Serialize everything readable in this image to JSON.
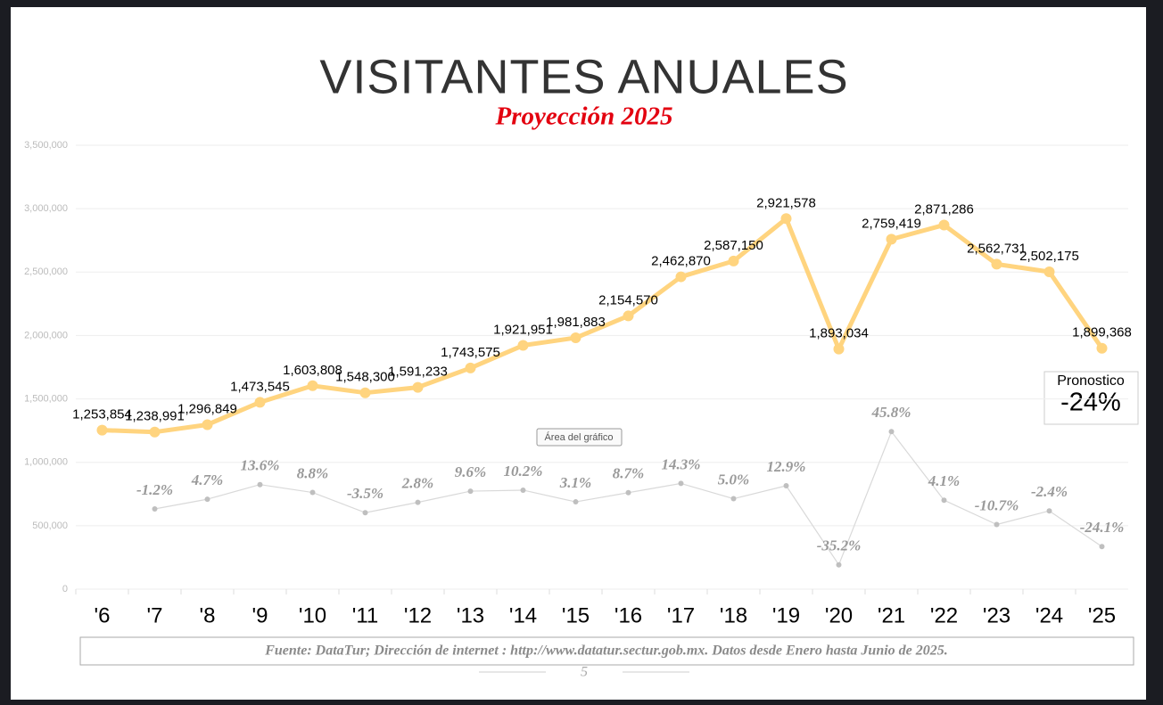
{
  "chart_data": {
    "type": "line",
    "title": "VISITANTES ANUALES",
    "subtitle": "Proyección 2025",
    "categories": [
      "'6",
      "'7",
      "'8",
      "'9",
      "'10",
      "'11",
      "'12",
      "'13",
      "'14",
      "'15",
      "'16",
      "'17",
      "'18",
      "'19",
      "'20",
      "'21",
      "'22",
      "'23",
      "'24",
      "'25"
    ],
    "series": [
      {
        "color": "#ffd47f",
        "values": [
          1253854,
          1238991,
          1296849,
          1473545,
          1603808,
          1548300,
          1591233,
          1743575,
          1921951,
          1981883,
          2154570,
          2462870,
          2587150,
          2921578,
          1893034,
          2759419,
          2871286,
          2562731,
          2502175,
          1899368
        ],
        "value_labels": [
          "1,253,854",
          "1,238,991",
          "1,296,849",
          "1,473,545",
          "1,603,808",
          "1,548,300",
          "1,591,233",
          "1,743,575",
          "1,921,951",
          "1,981,883",
          "2,154,570",
          "2,462,870",
          "2,587,150",
          "2,921,578",
          "1,893,034",
          "2,759,419",
          "2,871,286",
          "2,562,731",
          "2,502,175",
          "1,899,368"
        ]
      },
      {
        "color": "#d9d9d9",
        "axis": "y2",
        "values": [
          null,
          -1.2,
          4.7,
          13.6,
          8.8,
          -3.5,
          2.8,
          9.6,
          10.2,
          3.1,
          8.7,
          14.3,
          5.0,
          12.9,
          -35.2,
          45.8,
          4.1,
          -10.7,
          -2.4,
          -24.1
        ],
        "value_labels": [
          null,
          "-1.2%",
          "4.7%",
          "13.6%",
          "8.8%",
          "-3.5%",
          "2.8%",
          "9.6%",
          "10.2%",
          "3.1%",
          "8.7%",
          "14.3%",
          "5.0%",
          "12.9%",
          "-35.2%",
          "45.8%",
          "4.1%",
          "-10.7%",
          "-2.4%",
          "-24.1%"
        ]
      }
    ],
    "ylim": [
      0,
      3500000
    ],
    "yticks": [
      0,
      {
        "value": 500000,
        "label": "500,000"
      },
      {
        "value": 1000000,
        "label": "1,000,000"
      },
      {
        "value": 1500000,
        "label": "1,500,000"
      },
      {
        "value": 2000000,
        "label": "2,000,000"
      },
      {
        "value": 2500000,
        "label": "2,500,000"
      },
      {
        "value": 3000000,
        "label": "3,000,000"
      },
      {
        "value": 3500000,
        "label": "3,500,000"
      }
    ],
    "y2lim": [
      -50,
      220
    ],
    "grid": true,
    "forecast_label": "Pronostico",
    "forecast_value": "-24%",
    "tooltip": "Área del gráfico",
    "source": "Fuente: DataTur; Dirección de internet : http://www.datatur.sectur.gob.mx. Datos desde Enero hasta Junio de 2025.",
    "page_number": "5"
  }
}
